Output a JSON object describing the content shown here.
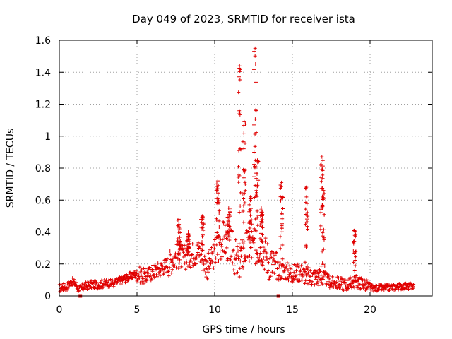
{
  "chart_data": {
    "type": "scatter",
    "title": "Day 049 of 2023, SRMTID for receiver ista",
    "xlabel": "GPS time / hours",
    "ylabel": "SRMTID / TECUs",
    "xlim": [
      0,
      24
    ],
    "ylim": [
      0,
      1.6
    ],
    "xticks": [
      0,
      5,
      10,
      15,
      20
    ],
    "yticks": [
      0,
      0.2,
      0.4,
      0.6,
      0.8,
      1,
      1.2,
      1.4,
      1.6
    ],
    "ytick_labels": [
      "0",
      "0.2",
      "0.4",
      "0.6",
      "0.8",
      "1",
      "1.2",
      "1.4",
      "1.6"
    ],
    "grid": true,
    "marker": "+",
    "series_color": "#e00000",
    "baseline": [
      [
        0.0,
        0.05
      ],
      [
        0.5,
        0.06
      ],
      [
        0.8,
        0.09
      ],
      [
        1.0,
        0.08
      ],
      [
        1.3,
        0.04
      ],
      [
        1.6,
        0.06
      ],
      [
        2.0,
        0.07
      ],
      [
        2.5,
        0.07
      ],
      [
        3.0,
        0.08
      ],
      [
        3.5,
        0.08
      ],
      [
        4.0,
        0.1
      ],
      [
        4.5,
        0.12
      ],
      [
        5.0,
        0.14
      ],
      [
        5.5,
        0.12
      ],
      [
        6.0,
        0.15
      ],
      [
        6.5,
        0.17
      ],
      [
        7.0,
        0.2
      ],
      [
        7.5,
        0.25
      ],
      [
        8.0,
        0.24
      ],
      [
        8.5,
        0.26
      ],
      [
        9.0,
        0.28
      ],
      [
        9.5,
        0.18
      ],
      [
        10.0,
        0.26
      ],
      [
        10.5,
        0.36
      ],
      [
        11.0,
        0.32
      ],
      [
        11.5,
        0.2
      ],
      [
        12.0,
        0.3
      ],
      [
        12.5,
        0.3
      ],
      [
        13.0,
        0.32
      ],
      [
        13.5,
        0.22
      ],
      [
        14.0,
        0.16
      ],
      [
        14.5,
        0.16
      ],
      [
        15.0,
        0.14
      ],
      [
        15.5,
        0.15
      ],
      [
        16.0,
        0.12
      ],
      [
        16.5,
        0.12
      ],
      [
        17.0,
        0.12
      ],
      [
        17.5,
        0.08
      ],
      [
        18.0,
        0.08
      ],
      [
        18.5,
        0.07
      ],
      [
        19.0,
        0.09
      ],
      [
        19.5,
        0.08
      ],
      [
        20.0,
        0.05
      ],
      [
        20.5,
        0.05
      ],
      [
        21.0,
        0.05
      ],
      [
        22.0,
        0.06
      ],
      [
        22.8,
        0.06
      ]
    ],
    "peaks": [
      [
        7.7,
        0.48
      ],
      [
        8.3,
        0.4
      ],
      [
        9.2,
        0.5
      ],
      [
        10.2,
        0.72
      ],
      [
        10.9,
        0.55
      ],
      [
        11.6,
        1.44
      ],
      [
        11.9,
        1.09
      ],
      [
        12.3,
        0.62
      ],
      [
        12.6,
        1.55
      ],
      [
        12.75,
        0.85
      ],
      [
        13.0,
        0.55
      ],
      [
        14.3,
        0.71
      ],
      [
        15.9,
        0.68
      ],
      [
        16.9,
        0.87
      ],
      [
        17.0,
        0.66
      ],
      [
        19.0,
        0.41
      ]
    ],
    "outliers": [
      [
        1.35,
        0.0
      ],
      [
        14.1,
        0.0
      ]
    ]
  }
}
